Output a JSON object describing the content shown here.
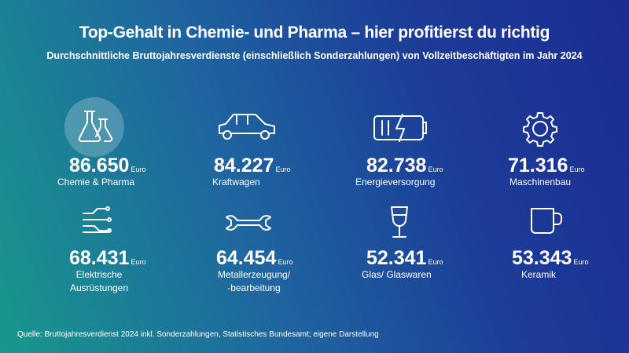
{
  "header": {
    "title": "Top-Gehalt in Chemie- und Pharma – hier profitierst du richtig",
    "subtitle": "Durchschnittliche Bruttojahresverdienste (einschließlich Sonderzahlungen) von Vollzeitbeschäftigten im Jahr 2024"
  },
  "items": [
    {
      "value": "86.650",
      "unit": "Euro",
      "label": [
        "Chemie & Pharma"
      ]
    },
    {
      "value": "84.227",
      "unit": "Euro",
      "label": [
        "Kraftwagen"
      ]
    },
    {
      "value": "82.738",
      "unit": "Euro",
      "label": [
        "Energieversorgung"
      ]
    },
    {
      "value": "71.316",
      "unit": "Euro",
      "label": [
        "Maschinenbau"
      ]
    },
    {
      "value": "68.431",
      "unit": "Euro",
      "label": [
        "Elektrische",
        "Ausrüstungen"
      ]
    },
    {
      "value": "64.454",
      "unit": "Euro",
      "label": [
        "Metallerzeugung/",
        "-bearbeitung"
      ]
    },
    {
      "value": "52.341",
      "unit": "Euro",
      "label": [
        "Glas/ Glaswaren"
      ]
    },
    {
      "value": "53.343",
      "unit": "Euro",
      "label": [
        "Keramik"
      ]
    }
  ],
  "footer": {
    "source": "Quelle: Bruttojahresverdienst 2024 inkl. Sonderzahlungen, Statistisches Bundesamt; eigene Darstellung"
  }
}
